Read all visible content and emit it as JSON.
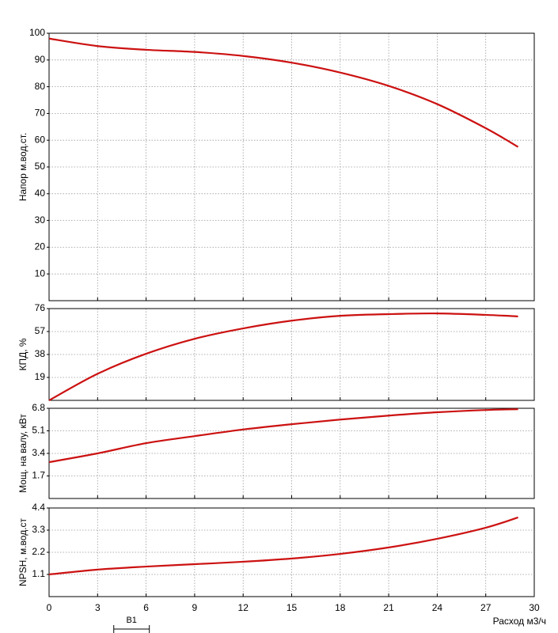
{
  "chart_data": [
    {
      "type": "line",
      "ylabel": "Напор м.вод.ст.",
      "color": "#cc1111",
      "grid": true,
      "x": [
        0,
        3,
        6,
        9,
        12,
        15,
        18,
        21,
        24,
        27,
        29
      ],
      "values": [
        98,
        95.2,
        93.8,
        93,
        91.5,
        89,
        85.3,
        80.3,
        73.5,
        64.5,
        57.5
      ],
      "ylim": [
        0,
        100
      ],
      "yticks": [
        10,
        20,
        30,
        40,
        50,
        60,
        70,
        80,
        90,
        100
      ]
    },
    {
      "type": "line",
      "ylabel": "КПД, %",
      "color": "#cc1111",
      "grid": true,
      "x": [
        0,
        3,
        6,
        9,
        12,
        15,
        18,
        21,
        24,
        27,
        29
      ],
      "values": [
        0,
        22,
        38.6,
        51,
        59.6,
        66,
        70,
        71.4,
        72,
        70.8,
        69.5
      ],
      "ylim": [
        0,
        76
      ],
      "yticks": [
        19,
        38,
        57,
        76
      ]
    },
    {
      "type": "line",
      "ylabel": "Мощ. на валу, кВт",
      "color": "#cc1111",
      "grid": true,
      "x": [
        0,
        3,
        6,
        9,
        12,
        15,
        18,
        21,
        24,
        27,
        29
      ],
      "values": [
        2.74,
        3.4,
        4.17,
        4.7,
        5.2,
        5.6,
        5.95,
        6.25,
        6.5,
        6.67,
        6.73
      ],
      "ylim": [
        0,
        6.8
      ],
      "yticks": [
        1.7,
        3.4,
        5.1,
        6.8
      ]
    },
    {
      "type": "line",
      "ylabel": "NPSH, м.вод.ст",
      "color": "#cc1111",
      "grid": true,
      "x": [
        0,
        3,
        6,
        9,
        12,
        15,
        18,
        21,
        24,
        27,
        29
      ],
      "values": [
        1.1,
        1.34,
        1.49,
        1.61,
        1.73,
        1.89,
        2.12,
        2.44,
        2.87,
        3.42,
        3.93
      ],
      "ylim": [
        0,
        4.4
      ],
      "yticks": [
        1.1,
        2.2,
        3.3,
        4.4
      ],
      "xlabel": "Расход м3/ч",
      "xlim": [
        0,
        30
      ],
      "xticks": [
        0,
        3,
        6,
        9,
        12,
        15,
        18,
        21,
        24,
        27,
        30
      ],
      "range": {
        "label": "B1",
        "x": [
          4,
          6.2
        ]
      }
    }
  ]
}
